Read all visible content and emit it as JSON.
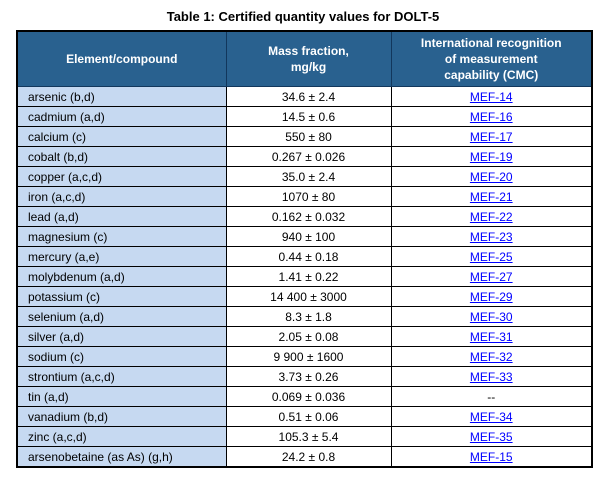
{
  "title": "Table 1: Certified quantity values for DOLT-5",
  "colors": {
    "header_bg": "#29618F",
    "header_text": "#FFFFFF",
    "element_column_bg": "#C6D9F1",
    "link": "#0000FF",
    "border": "#000000"
  },
  "table": {
    "headers": [
      "Element/compound",
      "Mass fraction,\nmg/kg",
      "International recognition\nof measurement\ncapability (CMC)"
    ],
    "rows": [
      {
        "element": "arsenic (b,d)",
        "value": "34.6 ± 2.4",
        "cmc": "MEF-14",
        "link": true
      },
      {
        "element": "cadmium (a,d)",
        "value": "14.5 ± 0.6",
        "cmc": "MEF-16",
        "link": true
      },
      {
        "element": "calcium (c)",
        "value": "550 ± 80",
        "cmc": "MEF-17",
        "link": true
      },
      {
        "element": "cobalt (b,d)",
        "value": "0.267 ± 0.026",
        "cmc": "MEF-19",
        "link": true
      },
      {
        "element": "copper (a,c,d)",
        "value": "35.0 ± 2.4",
        "cmc": "MEF-20",
        "link": true
      },
      {
        "element": "iron (a,c,d)",
        "value": "1070 ± 80",
        "cmc": "MEF-21",
        "link": true
      },
      {
        "element": "lead (a,d)",
        "value": "0.162 ± 0.032",
        "cmc": "MEF-22",
        "link": true
      },
      {
        "element": "magnesium (c)",
        "value": "940 ± 100",
        "cmc": "MEF-23",
        "link": true
      },
      {
        "element": "mercury (a,e)",
        "value": "0.44 ± 0.18",
        "cmc": "MEF-25",
        "link": true
      },
      {
        "element": "molybdenum (a,d)",
        "value": "1.41 ± 0.22",
        "cmc": "MEF-27",
        "link": true
      },
      {
        "element": "potassium (c)",
        "value": "14 400 ± 3000",
        "cmc": "MEF-29",
        "link": true
      },
      {
        "element": "selenium (a,d)",
        "value": "8.3 ± 1.8",
        "cmc": "MEF-30",
        "link": true
      },
      {
        "element": "silver (a,d)",
        "value": "2.05 ± 0.08",
        "cmc": "MEF-31",
        "link": true
      },
      {
        "element": "sodium (c)",
        "value": "9 900 ± 1600",
        "cmc": "MEF-32",
        "link": true
      },
      {
        "element": "strontium (a,c,d)",
        "value": "3.73 ± 0.26",
        "cmc": "MEF-33",
        "link": true
      },
      {
        "element": "tin (a,d)",
        "value": "0.069 ± 0.036",
        "cmc": "--",
        "link": false
      },
      {
        "element": "vanadium (b,d)",
        "value": "0.51 ± 0.06",
        "cmc": "MEF-34",
        "link": true
      },
      {
        "element": "zinc (a,c,d)",
        "value": "105.3 ± 5.4",
        "cmc": "MEF-35",
        "link": true
      },
      {
        "element": "arsenobetaine (as As) (g,h)",
        "value": "24.2 ± 0.8",
        "cmc": "MEF-15",
        "link": true
      }
    ]
  }
}
